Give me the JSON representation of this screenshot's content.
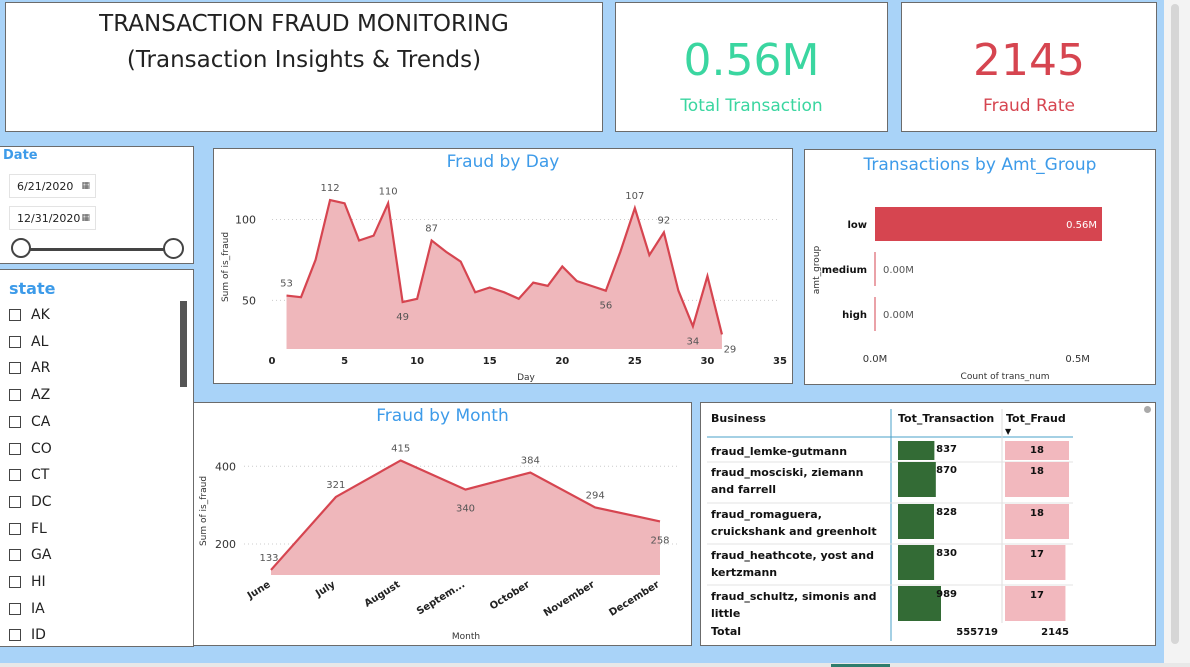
{
  "header": {
    "title_line1": "TRANSACTION FRAUD MONITORING",
    "title_line2": "(Transaction Insights & Trends)"
  },
  "kpi1": {
    "value": "0.56M",
    "label": "Total Transaction",
    "color": "#3ad6a0"
  },
  "kpi2": {
    "value": "2145",
    "label": "Fraud Rate",
    "color": "#d64550"
  },
  "date_slicer": {
    "label": "Date",
    "start": "6/21/2020",
    "end": "12/31/2020",
    "icon": "calendar-icon",
    "range_fraction": [
      0,
      1
    ]
  },
  "state_slicer": {
    "label": "state",
    "items": [
      "AK",
      "AL",
      "AR",
      "AZ",
      "CA",
      "CO",
      "CT",
      "DC",
      "FL",
      "GA",
      "HI",
      "IA",
      "ID"
    ]
  },
  "colors": {
    "accent": "#3d9be9",
    "line": "#d64550",
    "area": "#efb7bb",
    "bar_green": "#336b35",
    "bar_pink": "#f2b8be"
  },
  "fraud_by_day": {
    "title": "Fraud by Day",
    "chart_data": {
      "type": "area",
      "xlabel": "Day",
      "ylabel": "Sum of is_fraud",
      "xlim": [
        0,
        35
      ],
      "ylim": [
        20,
        125
      ],
      "xticks": [
        "0",
        "5",
        "10",
        "15",
        "20",
        "25",
        "30",
        "35"
      ],
      "yticks": [
        "50",
        "100"
      ],
      "x": [
        1,
        2,
        3,
        4,
        5,
        6,
        7,
        8,
        9,
        10,
        11,
        12,
        13,
        14,
        15,
        16,
        17,
        18,
        19,
        20,
        21,
        22,
        23,
        24,
        25,
        26,
        27,
        28,
        29,
        30,
        31
      ],
      "values": [
        53,
        52,
        75,
        112,
        110,
        87,
        90,
        110,
        49,
        51,
        87,
        80,
        74,
        55,
        58,
        55,
        51,
        61,
        59,
        71,
        62,
        59,
        56,
        80,
        107,
        78,
        92,
        56,
        34,
        65,
        29
      ],
      "labels": [
        {
          "i": 0,
          "text": "53"
        },
        {
          "i": 3,
          "text": "112"
        },
        {
          "i": 7,
          "text": "110"
        },
        {
          "i": 8,
          "text": "49"
        },
        {
          "i": 10,
          "text": "87"
        },
        {
          "i": 22,
          "text": "56"
        },
        {
          "i": 24,
          "text": "107"
        },
        {
          "i": 26,
          "text": "92"
        },
        {
          "i": 28,
          "text": "34"
        },
        {
          "i": 30,
          "text": "29"
        }
      ]
    }
  },
  "amt_group": {
    "title": "Transactions by Amt_Group",
    "chart_data": {
      "type": "bar",
      "categories": [
        "low",
        "medium",
        "high"
      ],
      "values": [
        0.56,
        0.0,
        0.0
      ],
      "value_labels": [
        "0.56M",
        "0.00M",
        "0.00M"
      ],
      "xlabel": "Count of trans_num",
      "ylabel": "amt_group",
      "xlim": [
        0,
        0.56
      ],
      "xticks": [
        "0.0M",
        "0.5M"
      ]
    }
  },
  "fraud_by_month": {
    "title": "Fraud by Month",
    "chart_data": {
      "type": "area",
      "xlabel": "Month",
      "ylabel": "Sum of is_fraud",
      "ylim": [
        120,
        460
      ],
      "yticks": [
        "200",
        "400"
      ],
      "categories": [
        "June",
        "July",
        "August",
        "Septem...",
        "October",
        "November",
        "December"
      ],
      "values": [
        133,
        321,
        415,
        340,
        384,
        294,
        258
      ],
      "value_labels": [
        "133",
        "321",
        "415",
        "340",
        "384",
        "294",
        "258"
      ]
    }
  },
  "table": {
    "columns": [
      "Business",
      "Tot_Transaction",
      "Tot_Fraud"
    ],
    "sort_indicator": "▼",
    "rows": [
      {
        "business": "fraud_lemke-gutmann",
        "trans": "837",
        "trans_n": 837,
        "fraud": "18",
        "fraud_n": 18
      },
      {
        "business": "fraud_mosciski, ziemann and farrell",
        "trans": "870",
        "trans_n": 870,
        "fraud": "18",
        "fraud_n": 18
      },
      {
        "business": "fraud_romaguera, cruickshank and greenholt",
        "trans": "828",
        "trans_n": 828,
        "fraud": "18",
        "fraud_n": 18
      },
      {
        "business": "fraud_heathcote, yost and kertzmann",
        "trans": "830",
        "trans_n": 830,
        "fraud": "17",
        "fraud_n": 17
      },
      {
        "business": "fraud_schultz, simonis and little",
        "trans": "989",
        "trans_n": 989,
        "fraud": "17",
        "fraud_n": 17
      }
    ],
    "total_label": "Total",
    "total_trans": "555719",
    "total_fraud": "2145"
  }
}
